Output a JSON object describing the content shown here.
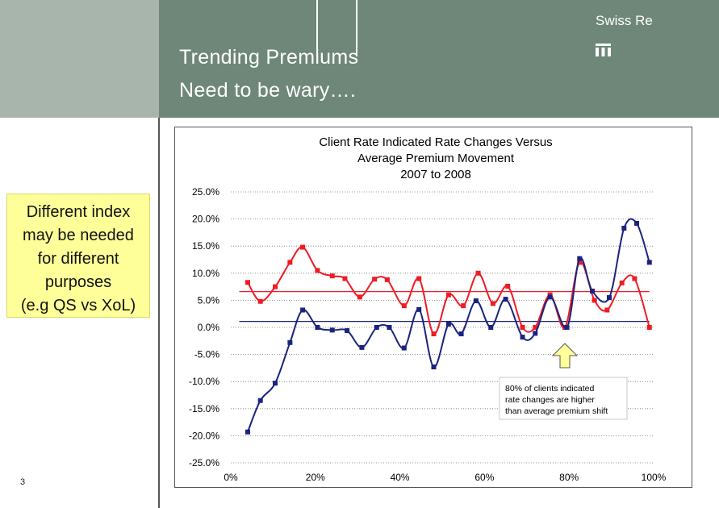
{
  "slide": {
    "title_line1": "Trending Premiums",
    "title_line2": "Need to be wary….",
    "brand": "Swiss Re",
    "page_number": "3",
    "note_lines": [
      "Different index",
      "may be needed",
      "for different",
      "purposes",
      "(e.g QS vs XoL)"
    ]
  },
  "colors": {
    "header": "#6e8779",
    "header_light": "#a8b5ad",
    "note_bg": "#ffff99",
    "red": "#ee1c24",
    "blue": "#1a237e",
    "arrow_fill": "#ffff99"
  },
  "chart_data": {
    "type": "line",
    "title_lines": [
      "Client Rate Indicated Rate Changes Versus",
      "Average Premium Movement",
      "2007 to 2008"
    ],
    "xlabel": "",
    "ylabel": "",
    "xlim": [
      0,
      1
    ],
    "ylim": [
      -0.25,
      0.25
    ],
    "x_ticks": [
      "0%",
      "20%",
      "40%",
      "60%",
      "80%",
      "100%"
    ],
    "y_ticks": [
      "25.0%",
      "20.0%",
      "15.0%",
      "10.0%",
      "5.0%",
      "0.0%",
      "-5.0%",
      "-10.0%",
      "-15.0%",
      "-20.0%",
      "-25.0%"
    ],
    "grid": "horizontal dotted",
    "series": [
      {
        "color": "#ee1c24",
        "x": [
          0.04,
          0.07,
          0.105,
          0.14,
          0.17,
          0.205,
          0.24,
          0.27,
          0.305,
          0.34,
          0.37,
          0.41,
          0.445,
          0.48,
          0.515,
          0.55,
          0.585,
          0.62,
          0.655,
          0.69,
          0.72,
          0.755,
          0.79,
          0.825,
          0.86,
          0.89,
          0.925,
          0.955,
          0.99
        ],
        "y": [
          0.083,
          0.048,
          0.075,
          0.12,
          0.148,
          0.105,
          0.095,
          0.09,
          0.056,
          0.089,
          0.088,
          0.04,
          0.09,
          -0.012,
          0.06,
          0.04,
          0.1,
          0.044,
          0.076,
          0.0,
          0.0,
          0.06,
          0.0,
          0.12,
          0.05,
          0.032,
          0.082,
          0.09,
          0.0
        ]
      },
      {
        "color": "#1a237e",
        "x": [
          0.04,
          0.07,
          0.105,
          0.14,
          0.17,
          0.205,
          0.24,
          0.275,
          0.31,
          0.345,
          0.375,
          0.41,
          0.445,
          0.48,
          0.515,
          0.545,
          0.58,
          0.615,
          0.65,
          0.69,
          0.72,
          0.755,
          0.795,
          0.825,
          0.855,
          0.895,
          0.93,
          0.96,
          0.99
        ],
        "y": [
          -0.193,
          -0.135,
          -0.103,
          -0.028,
          0.032,
          0.0,
          -0.005,
          -0.006,
          -0.037,
          0.0,
          0.0,
          -0.038,
          0.033,
          -0.073,
          0.006,
          -0.012,
          0.049,
          0.0,
          0.052,
          -0.018,
          -0.011,
          0.056,
          0.0,
          0.127,
          0.067,
          0.055,
          0.183,
          0.192,
          0.12
        ]
      }
    ],
    "reference_lines": [
      {
        "color": "#ee1c24",
        "y": 0.066
      },
      {
        "color": "#1a237e",
        "y": 0.011
      }
    ],
    "annotation": {
      "lines": [
        "80% of clients indicated",
        "rate changes are higher",
        "than average premium shift"
      ]
    }
  }
}
